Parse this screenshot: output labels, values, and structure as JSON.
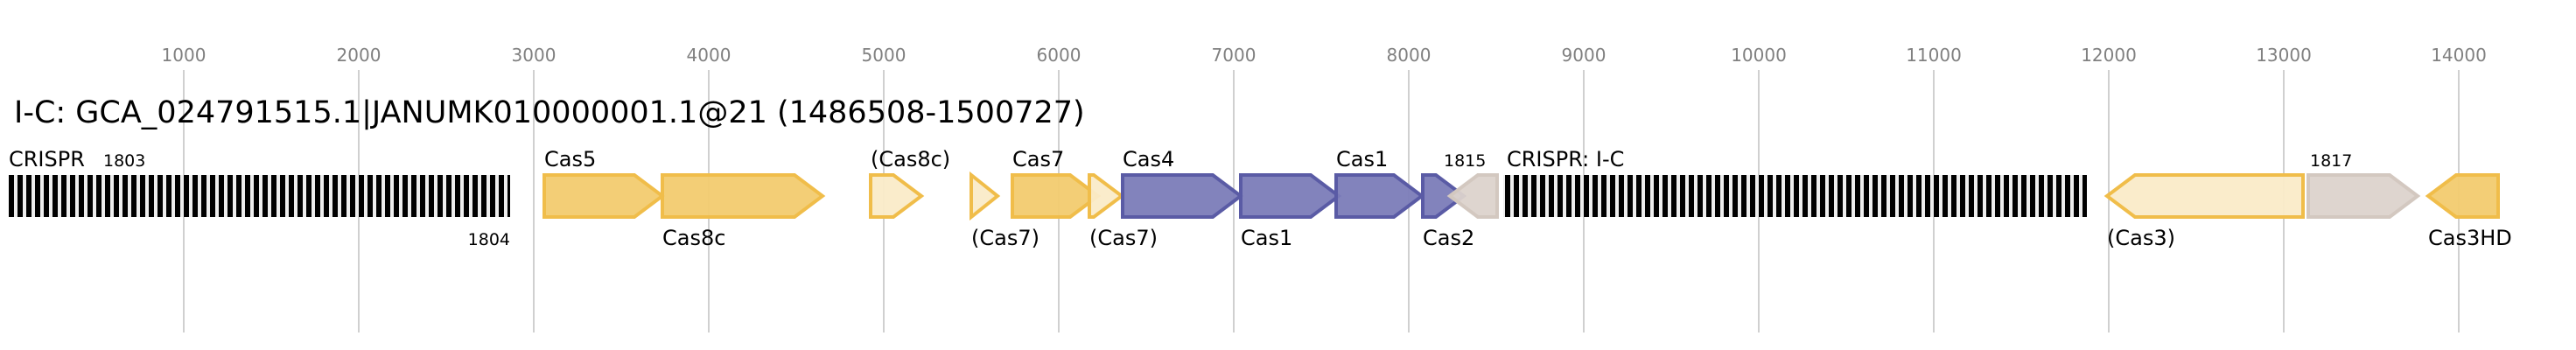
{
  "title": "I-C: GCA_024791515.1|JANUMK010000001.1@21 (1486508-1500727)",
  "axis": {
    "ticks": [
      "1000",
      "2000",
      "3000",
      "4000",
      "5000",
      "6000",
      "7000",
      "8000",
      "9000",
      "10000",
      "11000",
      "12000",
      "13000",
      "14000"
    ]
  },
  "colors": {
    "solid_fill": "#f2cb6f",
    "solid_stroke": "#f0bd4a",
    "light_fill": "#faebc8",
    "light_stroke": "#f0bd4a",
    "purple_fill": "#7b7cb8",
    "purple_stroke": "#5a5ba5",
    "grey_fill": "#dcd3cc",
    "grey_stroke": "#d3c8c0",
    "crispr_repeat": "#000000",
    "crispr_spacer": "#eeeeee",
    "gridline": "#c0c0c0"
  },
  "arrays": [
    {
      "label": "CRISPR",
      "id_top": "1803",
      "id_bottom": "1804"
    },
    {
      "label": "CRISPR: I-C"
    }
  ],
  "genes": [
    {
      "label": "Cas5",
      "pos": "above",
      "style": "solid",
      "dir": "forward"
    },
    {
      "label": "Cas8c",
      "pos": "below",
      "style": "solid",
      "dir": "forward"
    },
    {
      "label": "(Cas8c)",
      "pos": "above",
      "style": "light",
      "dir": "forward"
    },
    {
      "label": "(Cas7)",
      "pos": "below",
      "style": "light",
      "dir": "forward"
    },
    {
      "label": "Cas7",
      "pos": "above",
      "style": "solid",
      "dir": "forward"
    },
    {
      "label": "(Cas7)",
      "pos": "below",
      "style": "light",
      "dir": "forward"
    },
    {
      "label": "Cas4",
      "pos": "above",
      "style": "purple",
      "dir": "forward"
    },
    {
      "label": "Cas1",
      "pos": "below",
      "style": "purple",
      "dir": "forward"
    },
    {
      "label": "Cas1",
      "pos": "above",
      "style": "purple",
      "dir": "forward"
    },
    {
      "label": "Cas2",
      "pos": "below",
      "style": "purple",
      "dir": "forward"
    },
    {
      "label": "1815",
      "pos": "above",
      "style": "grey",
      "dir": "reverse"
    },
    {
      "label": "(Cas3)",
      "pos": "below",
      "style": "light",
      "dir": "reverse"
    },
    {
      "label": "1817",
      "pos": "above",
      "style": "grey",
      "dir": "forward"
    },
    {
      "label": "Cas3HD",
      "pos": "below",
      "style": "solid",
      "dir": "reverse"
    }
  ]
}
